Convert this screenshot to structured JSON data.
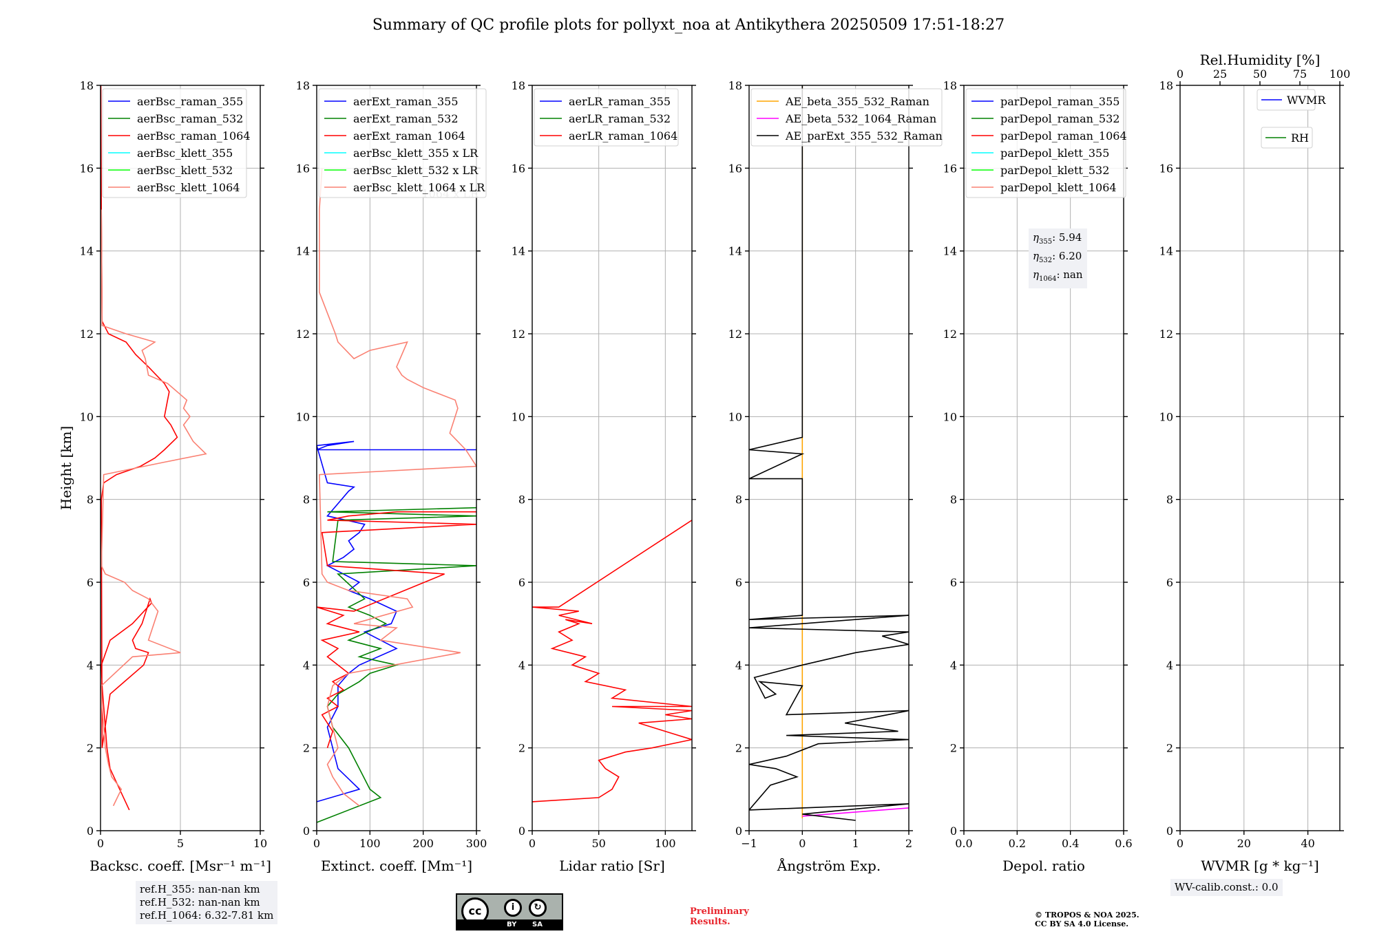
{
  "title": "Summary of QC profile plots for pollyxt_noa at Antikythera 20250509 17:51-18:27",
  "ylabel": "Height [km]",
  "chart_data": [
    {
      "type": "line",
      "id": "bsc",
      "xlabel": "Backsc. coeff. [Msr⁻¹ m⁻¹]",
      "xlim": [
        0,
        10
      ],
      "xticks": [
        0,
        5,
        10
      ],
      "ylim": [
        0,
        18
      ],
      "yticks": [
        0,
        2,
        4,
        6,
        8,
        10,
        12,
        14,
        16,
        18
      ],
      "grid": true,
      "legend_position": "top-left",
      "series": [
        {
          "name": "aerBsc_raman_355",
          "color": "#0000ff",
          "x": [],
          "y": []
        },
        {
          "name": "aerBsc_raman_532",
          "color": "#008000",
          "x": [],
          "y": []
        },
        {
          "name": "aerBsc_raman_1064",
          "color": "#ff0000",
          "x": [
            1.8,
            1.2,
            0.6,
            0.4,
            0.3,
            0.2,
            0.1,
            0.05,
            0.6,
            2.0,
            3.2,
            3.1,
            2.6,
            2.0,
            2.2,
            3.0,
            2.7,
            1.5,
            0.6,
            0.1,
            0.05,
            0.2,
            1.0,
            2.5,
            3.4,
            4.0,
            4.8,
            4.4,
            4.0,
            4.1,
            4.2,
            4.3,
            4.0,
            3.5,
            3.0,
            2.2,
            1.6,
            0.5,
            0.1,
            0.05,
            0.02
          ],
          "y": [
            0.5,
            1.0,
            1.5,
            2.0,
            2.5,
            3.0,
            3.5,
            4.0,
            4.6,
            5.0,
            5.5,
            5.6,
            5.0,
            4.6,
            4.4,
            4.3,
            4.0,
            3.6,
            3.3,
            2.0,
            8.0,
            8.4,
            8.6,
            8.8,
            9.0,
            9.2,
            9.5,
            9.8,
            10.0,
            10.2,
            10.4,
            10.6,
            10.8,
            11.0,
            11.2,
            11.5,
            11.8,
            12.0,
            12.3,
            15.0,
            18.0
          ]
        },
        {
          "name": "aerBsc_klett_355",
          "color": "#00ffff",
          "x": [],
          "y": []
        },
        {
          "name": "aerBsc_klett_532",
          "color": "#00ff00",
          "x": [],
          "y": []
        },
        {
          "name": "aerBsc_klett_1064",
          "color": "#fa8072",
          "x": [
            0.8,
            1.3,
            0.7,
            0.5,
            0.3,
            0.1,
            0.05,
            2.0,
            5.0,
            3.0,
            3.6,
            3.0,
            2.0,
            1.5,
            0.3,
            0.05,
            0.2,
            4.0,
            6.6,
            5.8,
            5.2,
            5.6,
            5.2,
            5.4,
            4.2,
            3.0,
            2.8,
            2.6,
            3.4,
            1.6,
            0.1,
            0.05
          ],
          "y": [
            0.6,
            1.0,
            1.3,
            1.6,
            2.0,
            3.0,
            3.5,
            4.2,
            4.3,
            4.6,
            5.3,
            5.6,
            5.8,
            6.0,
            6.2,
            6.4,
            8.6,
            8.9,
            9.1,
            9.4,
            9.8,
            10.0,
            10.2,
            10.4,
            10.8,
            11.0,
            11.4,
            11.6,
            11.8,
            12.0,
            12.2,
            15.0
          ]
        }
      ],
      "annotation": "ref.H_355: nan-nan km\nref.H_532: nan-nan km\nref.H_1064: 6.32-7.81 km"
    },
    {
      "type": "line",
      "id": "ext",
      "xlabel": "Extinct. coeff. [Mm⁻¹]",
      "xlim": [
        0,
        300
      ],
      "xticks": [
        0,
        100,
        200,
        300
      ],
      "ylim": [
        0,
        18
      ],
      "yticks": [
        0,
        2,
        4,
        6,
        8,
        10,
        12,
        14,
        16,
        18
      ],
      "grid": true,
      "legend_position": "top-left",
      "series": [
        {
          "name": "aerExt_raman_355",
          "color": "#0000ff",
          "x": [
            0,
            80,
            40,
            30,
            20,
            40,
            40,
            60,
            80,
            150,
            120,
            90,
            140,
            150,
            100,
            60,
            80,
            20,
            50,
            70,
            60,
            80,
            90,
            20,
            60,
            70,
            20,
            0,
            70,
            20,
            0,
            300
          ],
          "y": [
            0.7,
            1.0,
            1.5,
            2.0,
            2.5,
            3.0,
            3.5,
            3.8,
            4.0,
            4.4,
            4.6,
            4.8,
            5.0,
            5.3,
            5.6,
            5.8,
            6.0,
            6.4,
            6.6,
            6.8,
            7.0,
            7.2,
            7.4,
            7.6,
            8.2,
            8.3,
            8.4,
            9.3,
            9.4,
            9.3,
            9.2,
            9.2
          ]
        },
        {
          "name": "aerExt_raman_532",
          "color": "#008000",
          "x": [
            0,
            120,
            100,
            80,
            60,
            30,
            20,
            40,
            80,
            100,
            150,
            80,
            120,
            60,
            130,
            100,
            60,
            90,
            40,
            300,
            30,
            40,
            300,
            20,
            300
          ],
          "y": [
            0.2,
            0.8,
            1.0,
            1.5,
            2.0,
            2.5,
            3.0,
            3.3,
            3.6,
            3.8,
            4.0,
            4.2,
            4.4,
            4.6,
            5.0,
            5.2,
            5.4,
            5.6,
            6.2,
            6.4,
            6.5,
            7.5,
            7.6,
            7.7,
            7.8
          ]
        },
        {
          "name": "aerExt_raman_1064",
          "color": "#ff0000",
          "x": [
            20,
            30,
            10,
            40,
            20,
            50,
            30,
            60,
            20,
            40,
            10,
            80,
            20,
            50,
            0,
            70,
            240,
            20,
            10,
            300,
            20,
            60,
            150,
            300
          ],
          "y": [
            2.0,
            2.4,
            2.8,
            3.0,
            3.2,
            3.4,
            3.6,
            3.8,
            4.2,
            4.4,
            4.6,
            4.8,
            5.0,
            5.2,
            5.4,
            5.3,
            6.2,
            6.4,
            7.2,
            7.4,
            7.5,
            7.6,
            7.7,
            7.7
          ]
        },
        {
          "name": "aerBsc_klett_355 x LR",
          "color": "#00ffff",
          "x": [],
          "y": []
        },
        {
          "name": "aerBsc_klett_532 x LR",
          "color": "#00ff00",
          "x": [],
          "y": []
        },
        {
          "name": "aerBsc_klett_1064 x LR",
          "color": "#fa8072",
          "x": [
            80,
            50,
            30,
            20,
            40,
            30,
            20,
            30,
            60,
            270,
            120,
            150,
            70,
            180,
            170,
            60,
            20,
            10,
            5,
            300,
            280,
            250,
            260,
            265,
            260,
            220,
            200,
            170,
            160,
            150,
            170,
            100,
            70,
            40,
            35,
            5,
            5,
            10
          ],
          "y": [
            0.6,
            0.9,
            1.3,
            1.6,
            2.0,
            2.5,
            3.0,
            3.5,
            3.8,
            4.3,
            4.6,
            4.9,
            5.0,
            5.4,
            5.6,
            5.8,
            6.0,
            6.2,
            8.6,
            8.8,
            9.2,
            9.6,
            10.0,
            10.2,
            10.4,
            10.6,
            10.7,
            10.9,
            11.0,
            11.2,
            11.8,
            11.6,
            11.4,
            11.8,
            12.0,
            13.0,
            15.0,
            16.0
          ]
        }
      ],
      "legend_overflow_text": "1064 x LR"
    },
    {
      "type": "line",
      "id": "lr",
      "xlabel": "Lidar ratio [Sr]",
      "xlim": [
        0,
        120
      ],
      "xticks": [
        0,
        50,
        100
      ],
      "ylim": [
        0,
        18
      ],
      "yticks": [
        0,
        2,
        4,
        6,
        8,
        10,
        12,
        14,
        16,
        18
      ],
      "grid": true,
      "legend_position": "top-left",
      "series": [
        {
          "name": "aerLR_raman_355",
          "color": "#0000ff",
          "x": [],
          "y": []
        },
        {
          "name": "aerLR_raman_532",
          "color": "#008000",
          "x": [],
          "y": []
        },
        {
          "name": "aerLR_raman_1064",
          "color": "#ff0000",
          "x": [
            0,
            50,
            60,
            65,
            55,
            50,
            70,
            90,
            120,
            100,
            80,
            120,
            100,
            120,
            60,
            120,
            60,
            70,
            40,
            50,
            30,
            40,
            15,
            30,
            20,
            35,
            25,
            45,
            20,
            35,
            0,
            20,
            120,
            120
          ],
          "y": [
            0.7,
            0.8,
            1.0,
            1.3,
            1.5,
            1.7,
            1.9,
            2.0,
            2.2,
            2.4,
            2.6,
            2.7,
            2.8,
            2.9,
            3.0,
            3.0,
            3.2,
            3.4,
            3.6,
            3.8,
            4.0,
            4.2,
            4.4,
            4.6,
            4.8,
            5.0,
            5.1,
            5.0,
            5.2,
            5.3,
            5.4,
            5.4,
            7.5,
            7.5
          ]
        }
      ]
    },
    {
      "type": "line",
      "id": "ae",
      "xlabel": "Ångström Exp.",
      "xlim": [
        -1,
        2
      ],
      "xticks": [
        -1,
        0,
        1,
        2
      ],
      "ylim": [
        0,
        18
      ],
      "yticks": [
        0,
        2,
        4,
        6,
        8,
        10,
        12,
        14,
        16,
        18
      ],
      "grid": true,
      "legend_position": "top-left",
      "series": [
        {
          "name": "AE_beta_355_532_Raman",
          "color": "#ffa500",
          "x": [
            0,
            0
          ],
          "y": [
            0.3,
            18
          ]
        },
        {
          "name": "AE_beta_532_1064_Raman",
          "color": "#ff00ff",
          "x": [
            0,
            1,
            2
          ],
          "y": [
            0.35,
            0.45,
            0.55
          ]
        },
        {
          "name": "AE_parExt_355_532_Raman",
          "color": "#000000",
          "x": [
            1,
            0,
            2,
            -1,
            -0.6,
            -0.1,
            -0.5,
            -1,
            -0.3,
            0.3,
            2,
            -0.3,
            1.8,
            0.8,
            2,
            -0.3,
            0,
            -0.8,
            -0.5,
            -0.7,
            -0.9,
            0,
            1,
            2,
            1.5,
            2,
            -1,
            2,
            -1,
            0,
            0,
            -1,
            0,
            -1,
            0,
            0
          ],
          "y": [
            0.25,
            0.4,
            0.65,
            0.5,
            1.1,
            1.3,
            1.5,
            1.6,
            1.8,
            2.1,
            2.2,
            2.3,
            2.4,
            2.6,
            2.9,
            2.8,
            3.5,
            3.6,
            3.3,
            3.2,
            3.7,
            4.0,
            4.3,
            4.5,
            4.7,
            4.8,
            4.9,
            5.2,
            5.1,
            5.2,
            8.5,
            8.5,
            9.1,
            9.2,
            9.5,
            18
          ]
        }
      ]
    },
    {
      "type": "line",
      "id": "depol",
      "xlabel": "Depol. ratio",
      "xlim": [
        0,
        0.6
      ],
      "xticks": [
        0.0,
        0.2,
        0.4,
        0.6
      ],
      "xtick_labels": [
        "0.0",
        "0.2",
        "0.4",
        "0.6"
      ],
      "ylim": [
        0,
        18
      ],
      "yticks": [
        0,
        2,
        4,
        6,
        8,
        10,
        12,
        14,
        16,
        18
      ],
      "grid": true,
      "legend_position": "top-left",
      "series": [
        {
          "name": "parDepol_raman_355",
          "color": "#0000ff",
          "x": [],
          "y": []
        },
        {
          "name": "parDepol_raman_532",
          "color": "#008000",
          "x": [],
          "y": []
        },
        {
          "name": "parDepol_raman_1064",
          "color": "#ff0000",
          "x": [],
          "y": []
        },
        {
          "name": "parDepol_klett_355",
          "color": "#00ffff",
          "x": [],
          "y": []
        },
        {
          "name": "parDepol_klett_532",
          "color": "#00ff00",
          "x": [],
          "y": []
        },
        {
          "name": "parDepol_klett_1064",
          "color": "#fa8072",
          "x": [],
          "y": []
        }
      ],
      "eta": [
        {
          "sym": "η",
          "sub": "355",
          "value": ": 5.94"
        },
        {
          "sym": "η",
          "sub": "532",
          "value": ": 6.20"
        },
        {
          "sym": "η",
          "sub": "1064",
          "value": ": nan"
        }
      ]
    },
    {
      "type": "line",
      "id": "wv",
      "xlabel": "WVMR [g * kg⁻¹]",
      "xlim": [
        0,
        50
      ],
      "xticks": [
        0,
        20,
        40
      ],
      "top_xlabel": "Rel.Humidity [%]",
      "top_xlim": [
        0,
        100
      ],
      "top_xticks": [
        0,
        25,
        50,
        75,
        100
      ],
      "ylim": [
        0,
        18
      ],
      "yticks": [
        0,
        2,
        4,
        6,
        8,
        10,
        12,
        14,
        16,
        18
      ],
      "grid": true,
      "series": [
        {
          "name": "WVMR",
          "color": "#0000ff",
          "x": [],
          "y": []
        },
        {
          "name": "RH",
          "color": "#008000",
          "x": [],
          "y": []
        }
      ],
      "annotation": "WV-calib.const.: 0.0"
    }
  ],
  "footer": {
    "license_badge": {
      "cc": "cc",
      "by": "BY",
      "sa": "SA",
      "i1": "i",
      "i2": "↻"
    },
    "preliminary": [
      "Preliminary",
      "Results."
    ],
    "copyright": [
      "© TROPOS & NOA 2025.",
      "CC BY SA 4.0 License."
    ]
  }
}
